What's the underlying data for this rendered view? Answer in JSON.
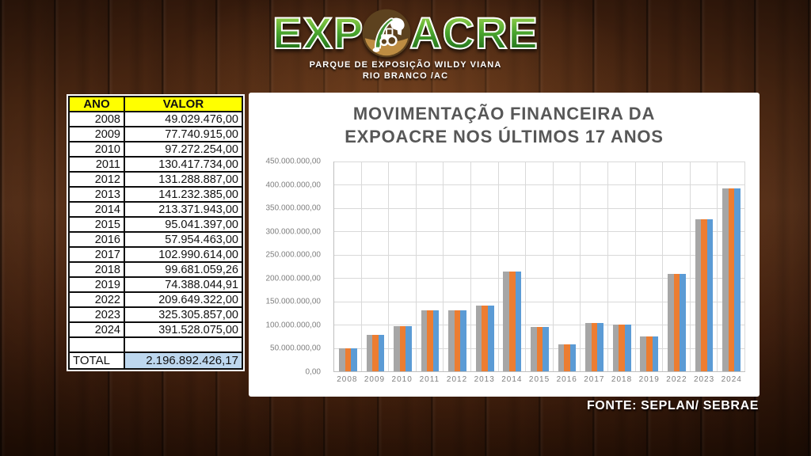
{
  "header": {
    "logo_part1": "EXP",
    "logo_part2": "ACRE",
    "logo_icon": "expoacre-emblem",
    "subtitle_line1": "PARQUE DE EXPOSIÇÃO WILDY VIANA",
    "subtitle_line2": "RIO BRANCO /AC"
  },
  "table": {
    "columns": [
      "ANO",
      "VALOR"
    ],
    "rows": [
      [
        "2008",
        "49.029.476,00"
      ],
      [
        "2009",
        "77.740.915,00"
      ],
      [
        "2010",
        "97.272.254,00"
      ],
      [
        "2011",
        "130.417.734,00"
      ],
      [
        "2012",
        "131.288.887,00"
      ],
      [
        "2013",
        "141.232.385,00"
      ],
      [
        "2014",
        "213.371.943,00"
      ],
      [
        "2015",
        "95.041.397,00"
      ],
      [
        "2016",
        "57.954.463,00"
      ],
      [
        "2017",
        "102.990.614,00"
      ],
      [
        "2018",
        "99.681.059,26"
      ],
      [
        "2019",
        "74.388.044,91"
      ],
      [
        "2022",
        "209.649.322,00"
      ],
      [
        "2023",
        "325.305.857,00"
      ],
      [
        "2024",
        "391.528.075,00"
      ]
    ],
    "total_label": "TOTAL",
    "total_value": "2.196.892.426,17"
  },
  "chart_data": {
    "type": "bar",
    "title": "MOVIMENTAÇÃO FINANCEIRA DA EXPOACRE NOS ÚLTIMOS 17 ANOS",
    "title_line1": "MOVIMENTAÇÃO FINANCEIRA DA",
    "title_line2": "EXPOACRE NOS ÚLTIMOS 17 ANOS",
    "categories": [
      "2008",
      "2009",
      "2010",
      "2011",
      "2012",
      "2013",
      "2014",
      "2015",
      "2016",
      "2017",
      "2018",
      "2019",
      "2022",
      "2023",
      "2024"
    ],
    "series": [
      {
        "name": "gray",
        "color": "#A6A6A6",
        "values": [
          49029476,
          77740915,
          97272254,
          130417734,
          131288887,
          141232385,
          213371943,
          95041397,
          57954463,
          102990614,
          99681059.26,
          74388044.91,
          209649322,
          325305857,
          391528075
        ]
      },
      {
        "name": "orange",
        "color": "#ED7D31",
        "values": [
          49029476,
          77740915,
          97272254,
          130417734,
          131288887,
          141232385,
          213371943,
          95041397,
          57954463,
          102990614,
          99681059.26,
          74388044.91,
          209649322,
          325305857,
          391528075
        ]
      },
      {
        "name": "blue",
        "color": "#5B9BD5",
        "values": [
          49029476,
          77740915,
          97272254,
          130417734,
          131288887,
          141232385,
          213371943,
          95041397,
          57954463,
          102990614,
          99681059.26,
          74388044.91,
          209649322,
          325305857,
          391528075
        ]
      }
    ],
    "ylim": [
      0,
      450000000
    ],
    "ytick_step": 50000000,
    "ytick_labels": [
      "450.000.000,00",
      "400.000.000,00",
      "350.000.000,00",
      "300.000.000,00",
      "250.000.000,00",
      "200.000.000,00",
      "150.000.000,00",
      "100.000.000,00",
      "50.000.000,00",
      "0,00"
    ],
    "grid": true,
    "legend_position": "none"
  },
  "footer": {
    "source": "FONTE: SEPLAN/ SEBRAE"
  },
  "colors": {
    "table_header_bg": "#FFFF00",
    "total_value_bg": "#BDD7EE",
    "bar_gray": "#A6A6A6",
    "bar_orange": "#ED7D31",
    "bar_blue": "#5B9BD5",
    "logo_green": "#2E8B2E"
  }
}
